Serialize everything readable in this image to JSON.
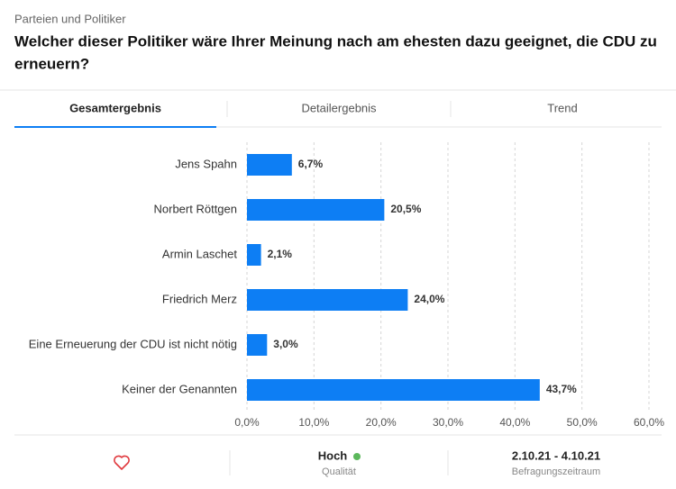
{
  "header": {
    "kicker": "Parteien und Politiker",
    "title_lines": [
      "Welcher dieser Politiker wäre Ihrer Meinung nach am ehesten dazu geeignet, die CDU zu",
      "erneuern?"
    ]
  },
  "tabs": [
    "Gesamtergebnis",
    "Detailergebnis",
    "Trend"
  ],
  "chart_data": {
    "type": "hbar",
    "color": "#0d7ef4",
    "grid": true,
    "categories": [
      "Jens Spahn",
      "Norbert Röttgen",
      "Armin Laschet",
      "Friedrich Merz",
      "Eine Erneuerung der CDU ist nicht nötig",
      "Keiner der Genannten"
    ],
    "values": [
      6.7,
      20.5,
      2.1,
      24.0,
      3.0,
      43.7
    ],
    "value_labels": [
      "6,7%",
      "20,5%",
      "2,1%",
      "24,0%",
      "3,0%",
      "43,7%"
    ],
    "xlim": [
      0,
      60
    ],
    "xticks": [
      {
        "value": 0,
        "label": "0,0%"
      },
      {
        "value": 10,
        "label": "10,0%"
      },
      {
        "value": 20,
        "label": "20,0%"
      },
      {
        "value": 30,
        "label": "30,0%"
      },
      {
        "value": 40,
        "label": "40,0%"
      },
      {
        "value": 50,
        "label": "50,0%"
      },
      {
        "value": 60,
        "label": "60,0%"
      }
    ]
  },
  "footer": {
    "quality": "Hoch",
    "quality_caption": "Qualität",
    "period": "2.10.21 - 4.10.21",
    "period_caption": "Befragungszeitraum"
  }
}
